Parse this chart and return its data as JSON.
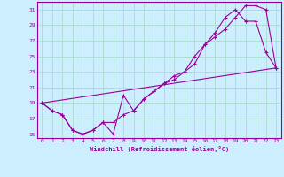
{
  "xlabel": "Windchill (Refroidissement éolien,°C)",
  "bg_color": "#cceeff",
  "line_color": "#990099",
  "grid_color": "#aaddcc",
  "xlim": [
    -0.5,
    23.5
  ],
  "ylim": [
    14.5,
    32
  ],
  "xticks": [
    0,
    1,
    2,
    3,
    4,
    5,
    6,
    7,
    8,
    9,
    10,
    11,
    12,
    13,
    14,
    15,
    16,
    17,
    18,
    19,
    20,
    21,
    22,
    23
  ],
  "yticks": [
    15,
    17,
    19,
    21,
    23,
    25,
    27,
    29,
    31
  ],
  "line1_x": [
    0,
    1,
    2,
    3,
    4,
    5,
    6,
    7,
    8,
    9,
    10,
    11,
    12,
    13,
    14,
    15,
    16,
    17,
    18,
    19,
    20,
    21,
    22,
    23
  ],
  "line1_y": [
    19,
    18,
    17.5,
    15.5,
    15.0,
    15.5,
    16.5,
    15.0,
    20.0,
    18.0,
    19.5,
    20.5,
    21.5,
    22.5,
    23.0,
    24.0,
    26.5,
    27.5,
    28.5,
    30.0,
    31.5,
    31.5,
    31.0,
    23.5
  ],
  "line2_x": [
    0,
    1,
    2,
    3,
    4,
    5,
    6,
    7,
    8,
    9,
    10,
    11,
    12,
    13,
    14,
    15,
    16,
    17,
    18,
    19,
    20,
    21,
    22,
    23
  ],
  "line2_y": [
    19,
    18,
    17.5,
    15.5,
    15.0,
    15.5,
    16.5,
    16.5,
    17.5,
    18.0,
    19.5,
    20.5,
    21.5,
    22.0,
    23.0,
    25.0,
    26.5,
    28.0,
    30.0,
    31.0,
    29.5,
    29.5,
    25.5,
    23.5
  ],
  "line3_x": [
    0,
    23
  ],
  "line3_y": [
    19,
    23.5
  ]
}
